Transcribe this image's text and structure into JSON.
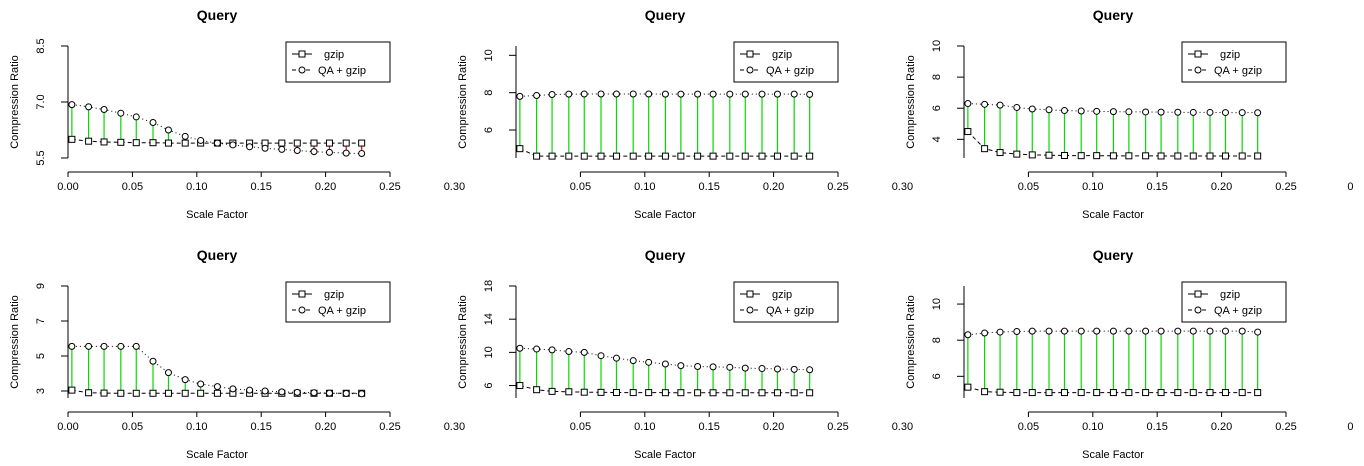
{
  "figure": {
    "background": "#ffffff",
    "colors": {
      "gzip_marker": "#000000",
      "qa_gzip_marker": "#000000",
      "stem_gain": "#00dd00",
      "stem_loss": "#ff0000"
    }
  },
  "chart_data": [
    {
      "type": "line",
      "title": "Query",
      "xlabel": "Scale Factor",
      "ylabel": "Compression Ratio",
      "xlim": [
        0.0,
        0.25
      ],
      "ylim": [
        5.5,
        8.5
      ],
      "xticks": [
        "0.00",
        "0.05",
        "0.10",
        "0.15",
        "0.20",
        "0.25",
        "0.30"
      ],
      "yticks": [
        "5.5",
        "7.0",
        "8.5"
      ],
      "legend": {
        "position": "top-right",
        "entries": [
          "gzip",
          "QA + gzip"
        ]
      },
      "x": [
        0.003,
        0.016,
        0.028,
        0.041,
        0.053,
        0.066,
        0.078,
        0.091,
        0.103,
        0.116,
        0.128,
        0.141,
        0.153,
        0.166,
        0.178,
        0.191,
        0.203,
        0.216,
        0.228
      ],
      "series": [
        {
          "name": "gzip",
          "marker": "square",
          "linestyle": "dashed",
          "values": [
            6.0,
            5.95,
            5.93,
            5.92,
            5.91,
            5.91,
            5.9,
            5.9,
            5.9,
            5.9,
            5.9,
            5.9,
            5.9,
            5.9,
            5.9,
            5.9,
            5.9,
            5.9,
            5.9
          ]
        },
        {
          "name": "QA + gzip",
          "marker": "circle",
          "linestyle": "dotted",
          "values": [
            6.93,
            6.87,
            6.8,
            6.7,
            6.6,
            6.45,
            6.25,
            6.08,
            5.97,
            5.9,
            5.85,
            5.8,
            5.76,
            5.73,
            5.7,
            5.67,
            5.65,
            5.63,
            5.62
          ]
        }
      ]
    },
    {
      "type": "line",
      "title": "Query",
      "xlabel": "Scale Factor",
      "ylabel": "Compression Ratio",
      "xlim": [
        0.0,
        0.25
      ],
      "ylim": [
        4.5,
        10.5
      ],
      "xticks": [
        "0.05",
        "0.10",
        "0.15",
        "0.20",
        "0.25",
        "0.30"
      ],
      "yticks": [
        "6",
        "8",
        "10"
      ],
      "legend": {
        "position": "top-right",
        "entries": [
          "gzip",
          "QA + gzip"
        ]
      },
      "x": [
        0.003,
        0.016,
        0.028,
        0.041,
        0.053,
        0.066,
        0.078,
        0.091,
        0.103,
        0.116,
        0.128,
        0.141,
        0.153,
        0.166,
        0.178,
        0.191,
        0.203,
        0.216,
        0.228
      ],
      "series": [
        {
          "name": "gzip",
          "marker": "square",
          "linestyle": "dashed",
          "values": [
            5.0,
            4.6,
            4.6,
            4.6,
            4.6,
            4.6,
            4.6,
            4.6,
            4.6,
            4.6,
            4.6,
            4.6,
            4.6,
            4.6,
            4.6,
            4.6,
            4.6,
            4.6,
            4.6
          ]
        },
        {
          "name": "QA + gzip",
          "marker": "circle",
          "linestyle": "dotted",
          "values": [
            7.8,
            7.85,
            7.9,
            7.92,
            7.93,
            7.93,
            7.93,
            7.93,
            7.93,
            7.92,
            7.92,
            7.92,
            7.92,
            7.92,
            7.92,
            7.92,
            7.92,
            7.92,
            7.91
          ]
        }
      ]
    },
    {
      "type": "line",
      "title": "Query",
      "xlabel": "Scale Factor",
      "ylabel": "Compression Ratio",
      "xlim": [
        0.0,
        0.25
      ],
      "ylim": [
        2.8,
        10.0
      ],
      "xticks": [
        "0.05",
        "0.10",
        "0.15",
        "0.20",
        "0.25",
        "0"
      ],
      "yticks": [
        "4",
        "6",
        "8",
        "10"
      ],
      "legend": {
        "position": "top-right",
        "entries": [
          "gzip",
          "QA + gzip"
        ]
      },
      "x": [
        0.003,
        0.016,
        0.028,
        0.041,
        0.053,
        0.066,
        0.078,
        0.091,
        0.103,
        0.116,
        0.128,
        0.141,
        0.153,
        0.166,
        0.178,
        0.191,
        0.203,
        0.216,
        0.228
      ],
      "series": [
        {
          "name": "gzip",
          "marker": "square",
          "linestyle": "dashed",
          "values": [
            4.5,
            3.4,
            3.15,
            3.05,
            3.0,
            2.98,
            2.96,
            2.95,
            2.95,
            2.94,
            2.94,
            2.94,
            2.93,
            2.93,
            2.93,
            2.93,
            2.93,
            2.93,
            2.93
          ]
        },
        {
          "name": "QA + gzip",
          "marker": "circle",
          "linestyle": "dotted",
          "values": [
            6.3,
            6.25,
            6.2,
            6.05,
            5.95,
            5.9,
            5.85,
            5.82,
            5.8,
            5.78,
            5.77,
            5.76,
            5.75,
            5.74,
            5.73,
            5.73,
            5.72,
            5.72,
            5.71
          ]
        }
      ]
    },
    {
      "type": "line",
      "title": "Query",
      "xlabel": "Scale Factor",
      "ylabel": "Compression Ratio",
      "xlim": [
        0.0,
        0.25
      ],
      "ylim": [
        2.6,
        9.0
      ],
      "xticks": [
        "0.00",
        "0.05",
        "0.10",
        "0.15",
        "0.20",
        "0.25",
        "0.30"
      ],
      "yticks": [
        "3",
        "5",
        "7",
        "9"
      ],
      "legend": {
        "position": "top-right",
        "entries": [
          "gzip",
          "QA + gzip"
        ]
      },
      "x": [
        0.003,
        0.016,
        0.028,
        0.041,
        0.053,
        0.066,
        0.078,
        0.091,
        0.103,
        0.116,
        0.128,
        0.141,
        0.153,
        0.166,
        0.178,
        0.191,
        0.203,
        0.216,
        0.228
      ],
      "series": [
        {
          "name": "gzip",
          "marker": "square",
          "linestyle": "dashed",
          "values": [
            3.05,
            2.9,
            2.88,
            2.87,
            2.87,
            2.87,
            2.87,
            2.87,
            2.87,
            2.87,
            2.87,
            2.87,
            2.87,
            2.87,
            2.87,
            2.87,
            2.87,
            2.87,
            2.87
          ]
        },
        {
          "name": "QA + gzip",
          "marker": "circle",
          "linestyle": "dotted",
          "values": [
            5.55,
            5.55,
            5.55,
            5.55,
            5.55,
            4.7,
            4.05,
            3.65,
            3.4,
            3.25,
            3.12,
            3.05,
            3.0,
            2.95,
            2.92,
            2.9,
            2.88,
            2.86,
            2.84
          ]
        }
      ]
    },
    {
      "type": "line",
      "title": "Query",
      "xlabel": "Scale Factor",
      "ylabel": "Compression Ratio",
      "xlim": [
        0.0,
        0.25
      ],
      "ylim": [
        4.5,
        18.0
      ],
      "xticks": [
        "0.05",
        "0.10",
        "0.15",
        "0.20",
        "0.25",
        "0.30"
      ],
      "yticks": [
        "6",
        "10",
        "14",
        "18"
      ],
      "legend": {
        "position": "top-right",
        "entries": [
          "gzip",
          "QA + gzip"
        ]
      },
      "x": [
        0.003,
        0.016,
        0.028,
        0.041,
        0.053,
        0.066,
        0.078,
        0.091,
        0.103,
        0.116,
        0.128,
        0.141,
        0.153,
        0.166,
        0.178,
        0.191,
        0.203,
        0.216,
        0.228
      ],
      "series": [
        {
          "name": "gzip",
          "marker": "square",
          "linestyle": "dashed",
          "values": [
            6.0,
            5.5,
            5.3,
            5.25,
            5.2,
            5.18,
            5.16,
            5.15,
            5.15,
            5.14,
            5.14,
            5.13,
            5.13,
            5.13,
            5.13,
            5.13,
            5.13,
            5.13,
            5.13
          ]
        },
        {
          "name": "QA + gzip",
          "marker": "circle",
          "linestyle": "dotted",
          "values": [
            10.5,
            10.4,
            10.3,
            10.1,
            10.0,
            9.6,
            9.3,
            9.0,
            8.8,
            8.6,
            8.4,
            8.3,
            8.25,
            8.2,
            8.1,
            8.05,
            8.0,
            7.95,
            7.9
          ]
        }
      ]
    },
    {
      "type": "line",
      "title": "Query",
      "xlabel": "Scale Factor",
      "ylabel": "Compression Ratio",
      "xlim": [
        0.0,
        0.25
      ],
      "ylim": [
        4.8,
        11.0
      ],
      "xticks": [
        "0.05",
        "0.10",
        "0.15",
        "0.20",
        "0.25",
        "0"
      ],
      "yticks": [
        "6",
        "8",
        "10"
      ],
      "legend": {
        "position": "top-right",
        "entries": [
          "gzip",
          "QA + gzip"
        ]
      },
      "x": [
        0.003,
        0.016,
        0.028,
        0.041,
        0.053,
        0.066,
        0.078,
        0.091,
        0.103,
        0.116,
        0.128,
        0.141,
        0.153,
        0.166,
        0.178,
        0.191,
        0.203,
        0.216,
        0.228
      ],
      "series": [
        {
          "name": "gzip",
          "marker": "square",
          "linestyle": "dashed",
          "values": [
            5.4,
            5.15,
            5.12,
            5.1,
            5.1,
            5.1,
            5.1,
            5.1,
            5.1,
            5.1,
            5.1,
            5.1,
            5.1,
            5.1,
            5.1,
            5.1,
            5.1,
            5.1,
            5.1
          ]
        },
        {
          "name": "QA + gzip",
          "marker": "circle",
          "linestyle": "dotted",
          "values": [
            8.3,
            8.4,
            8.45,
            8.48,
            8.5,
            8.5,
            8.5,
            8.5,
            8.5,
            8.5,
            8.5,
            8.5,
            8.5,
            8.5,
            8.5,
            8.5,
            8.5,
            8.5,
            8.45
          ]
        }
      ]
    }
  ]
}
